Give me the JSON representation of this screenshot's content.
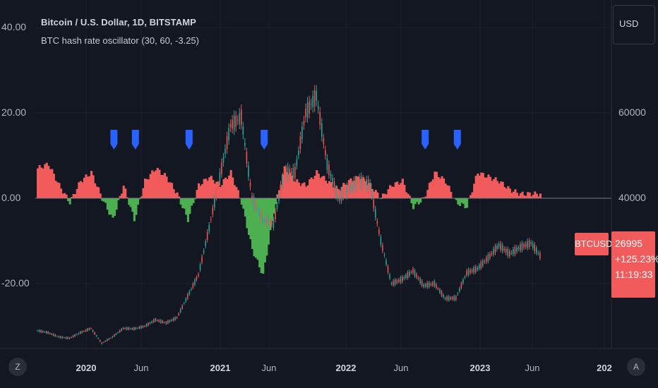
{
  "header": {
    "title": "Bitcoin / U.S. Dollar, 1D, BITSTAMP",
    "indicator": "BTC hash rate oscillator (30, 60, -3.25)"
  },
  "currency_button": "USD",
  "price_tag": {
    "symbol": "BTCUSD",
    "price": "26995",
    "change": "+125.23%",
    "countdown": "11:19:33"
  },
  "left_axis_labels": [
    "40.00",
    "20.00",
    "0.00",
    "-20.00"
  ],
  "right_axis_labels": [
    "60000",
    "40000"
  ],
  "x_axis_labels": [
    {
      "text": "2020",
      "year": true
    },
    {
      "text": "Jun",
      "year": false
    },
    {
      "text": "2021",
      "year": true
    },
    {
      "text": "Jun",
      "year": false
    },
    {
      "text": "2022",
      "year": true
    },
    {
      "text": "Jun",
      "year": false
    },
    {
      "text": "2023",
      "year": true
    },
    {
      "text": "Jun",
      "year": false
    },
    {
      "text": "202",
      "year": true
    }
  ],
  "corner_buttons": {
    "left": "Z",
    "right": "A"
  },
  "colors": {
    "background": "#131722",
    "positive_fill": "#f15b5b",
    "negative_fill": "#4caf50",
    "marker": "#2962ff",
    "candle_up": "#26a69a",
    "candle_down": "#ef5350",
    "grid": "#1e222d"
  },
  "chart_data": [
    {
      "type": "line",
      "series": [
        {
          "name": "BTCUSD",
          "x": [
            "2019-09",
            "2019-10",
            "2019-11",
            "2019-12",
            "2020-01",
            "2020-02",
            "2020-03",
            "2020-04",
            "2020-05",
            "2020-06",
            "2020-07",
            "2020-08",
            "2020-09",
            "2020-10",
            "2020-11",
            "2020-12",
            "2021-01",
            "2021-02",
            "2021-03",
            "2021-04",
            "2021-05",
            "2021-06",
            "2021-07",
            "2021-08",
            "2021-09",
            "2021-10",
            "2021-11",
            "2021-12",
            "2022-01",
            "2022-02",
            "2022-03",
            "2022-04",
            "2022-05",
            "2022-06",
            "2022-07",
            "2022-08",
            "2022-09",
            "2022-10",
            "2022-11",
            "2022-12",
            "2023-01",
            "2023-02",
            "2023-03",
            "2023-04",
            "2023-05",
            "2023-06",
            "2023-07",
            "2023-08"
          ],
          "values": [
            9000,
            8500,
            7500,
            7200,
            8500,
            9500,
            6000,
            7500,
            9500,
            9400,
            10000,
            11500,
            10800,
            12000,
            17000,
            22000,
            33000,
            45000,
            57000,
            59000,
            40000,
            35000,
            34000,
            46000,
            46000,
            60000,
            64000,
            48000,
            40000,
            42000,
            44000,
            43000,
            30000,
            20000,
            21000,
            23000,
            19500,
            20000,
            16500,
            16600,
            22500,
            23500,
            26000,
            29000,
            27000,
            28500,
            29500,
            26000
          ]
        }
      ],
      "ylim": [
        4000,
        70000
      ]
    },
    {
      "type": "area",
      "series": [
        {
          "x": [
            "2019-09",
            "2019-10",
            "2019-11",
            "2019-12",
            "2020-01",
            "2020-02",
            "2020-03",
            "2020-04",
            "2020-05",
            "2020-06",
            "2020-07",
            "2020-08",
            "2020-09",
            "2020-10",
            "2020-11",
            "2020-12",
            "2021-01",
            "2021-02",
            "2021-03",
            "2021-04",
            "2021-05",
            "2021-06",
            "2021-07",
            "2021-08",
            "2021-09",
            "2021-10",
            "2021-11",
            "2021-12",
            "2022-01",
            "2022-02",
            "2022-03",
            "2022-04",
            "2022-05",
            "2022-06",
            "2022-07",
            "2022-08",
            "2022-09",
            "2022-10",
            "2022-11",
            "2022-12",
            "2023-01",
            "2023-02",
            "2023-03",
            "2023-04",
            "2023-05",
            "2023-06",
            "2023-07",
            "2023-08"
          ],
          "values": [
            7,
            8,
            3,
            -1,
            4,
            6,
            0,
            -5,
            3,
            -5,
            4,
            7,
            5,
            1,
            -5,
            3,
            5,
            3,
            6,
            -1,
            -12,
            -18,
            -3,
            7,
            4,
            3,
            6,
            4,
            2,
            4,
            5,
            3,
            0,
            3,
            4,
            -2,
            0,
            6,
            4,
            -1,
            -2,
            6,
            5,
            4,
            2,
            1,
            1,
            1
          ]
        }
      ],
      "signals": [
        "2020-04",
        "2020-06",
        "2020-11",
        "2021-06",
        "2022-09",
        "2022-12"
      ],
      "ylim": [
        -30,
        43
      ]
    }
  ]
}
